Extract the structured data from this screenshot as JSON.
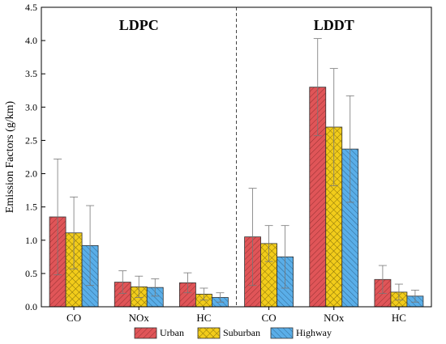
{
  "chart_data": {
    "type": "bar",
    "ylabel": "Emission Factors  (g/km)",
    "ylim": [
      0,
      4.5
    ],
    "yticks": [
      "0.0",
      "0.5",
      "1.0",
      "1.5",
      "2.0",
      "2.5",
      "3.0",
      "3.5",
      "4.0",
      "4.5"
    ],
    "grid": false,
    "legend_position": "bottom",
    "groups": [
      {
        "name": "LDPC",
        "categories": [
          "CO",
          "NOx",
          "HC"
        ],
        "series": [
          {
            "name": "Urban",
            "values": [
              1.35,
              0.37,
              0.36
            ],
            "errors": [
              0.87,
              0.17,
              0.15
            ]
          },
          {
            "name": "Suburban",
            "values": [
              1.11,
              0.3,
              0.19
            ],
            "errors": [
              0.54,
              0.16,
              0.09
            ]
          },
          {
            "name": "Highway",
            "values": [
              0.92,
              0.29,
              0.14
            ],
            "errors": [
              0.6,
              0.13,
              0.07
            ]
          }
        ]
      },
      {
        "name": "LDDT",
        "categories": [
          "CO",
          "NOx",
          "HC"
        ],
        "series": [
          {
            "name": "Urban",
            "values": [
              1.05,
              3.3,
              0.41
            ],
            "errors": [
              0.73,
              0.73,
              0.21
            ]
          },
          {
            "name": "Suburban",
            "values": [
              0.95,
              2.7,
              0.22
            ],
            "errors": [
              0.27,
              0.88,
              0.12
            ]
          },
          {
            "name": "Highway",
            "values": [
              0.75,
              2.37,
              0.16
            ],
            "errors": [
              0.47,
              0.8,
              0.09
            ]
          }
        ]
      }
    ],
    "colors": {
      "Urban": "#e05558",
      "Suburban": "#f2cc1a",
      "Highway": "#5aaee8"
    },
    "patterns": {
      "Urban": "diagonal-hatch",
      "Suburban": "crosshatch",
      "Highway": "diagonal-hatch"
    }
  }
}
